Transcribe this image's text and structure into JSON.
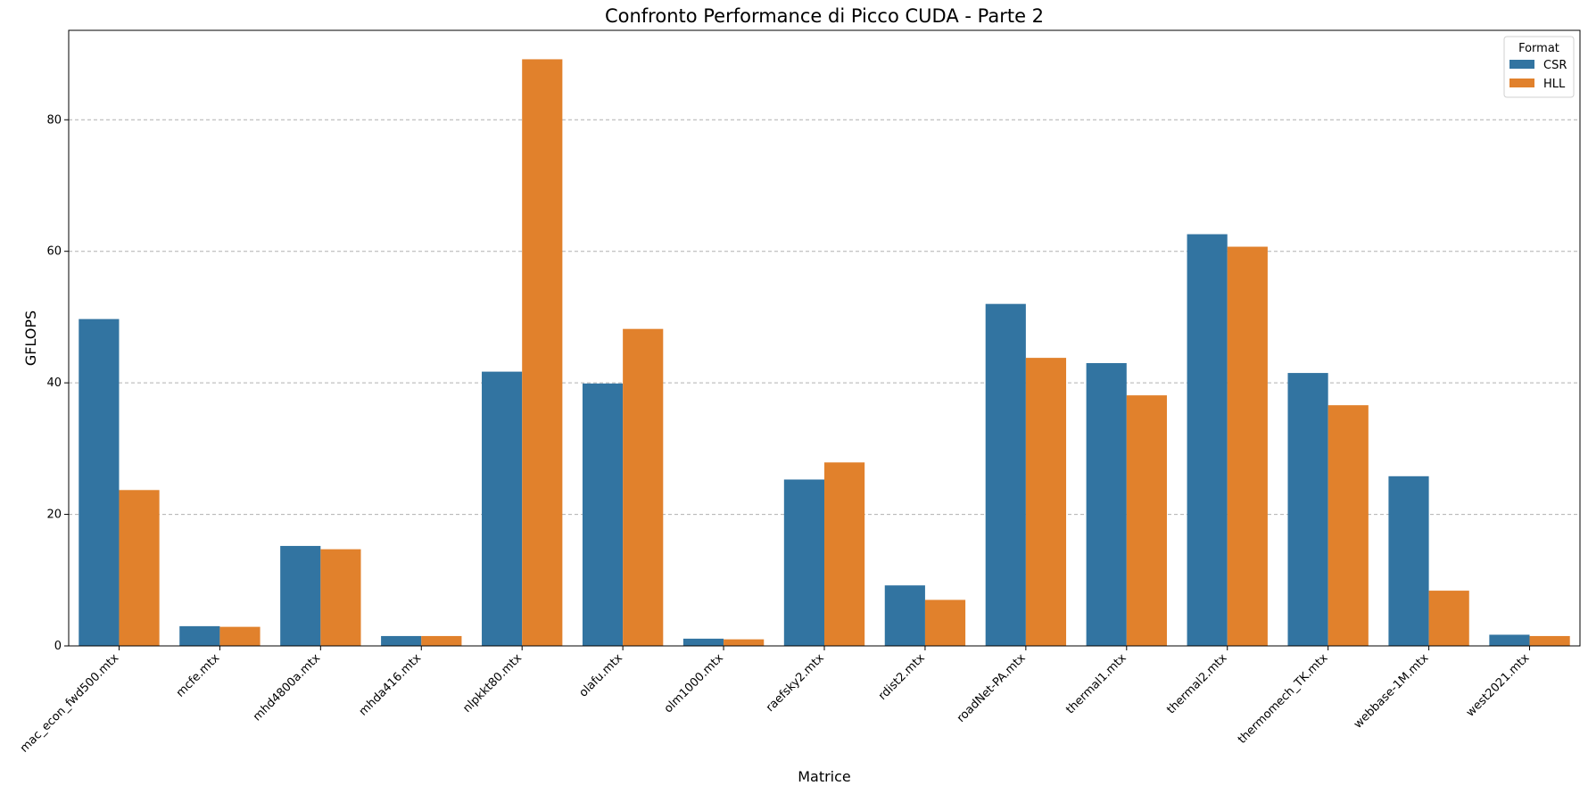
{
  "chart_data": {
    "type": "bar",
    "title": "Confronto Performance di Picco CUDA - Parte 2",
    "xlabel": "Matrice",
    "ylabel": "GFLOPS",
    "ylim": [
      0,
      93.6
    ],
    "yticks": [
      0,
      20,
      40,
      60,
      80
    ],
    "grid": "y-dashed",
    "legend": {
      "title": "Format",
      "placement": "top-right"
    },
    "categories": [
      "mac_econ_fwd500.mtx",
      "mcfe.mtx",
      "mhd4800a.mtx",
      "mhda416.mtx",
      "nlpkkt80.mtx",
      "olafu.mtx",
      "olm1000.mtx",
      "raefsky2.mtx",
      "rdist2.mtx",
      "roadNet-PA.mtx",
      "thermal1.mtx",
      "thermal2.mtx",
      "thermomech_TK.mtx",
      "webbase-1M.mtx",
      "west2021.mtx"
    ],
    "series": [
      {
        "name": "CSR",
        "color": "#3274a1",
        "values": [
          49.7,
          3.0,
          15.2,
          1.5,
          41.7,
          39.9,
          1.1,
          25.3,
          9.2,
          52.0,
          43.0,
          62.6,
          41.5,
          25.8,
          1.7
        ]
      },
      {
        "name": "HLL",
        "color": "#e1812c",
        "values": [
          23.7,
          2.9,
          14.7,
          1.5,
          89.2,
          48.2,
          1.0,
          27.9,
          7.0,
          43.8,
          38.1,
          60.7,
          36.6,
          8.4,
          1.5
        ]
      }
    ]
  }
}
